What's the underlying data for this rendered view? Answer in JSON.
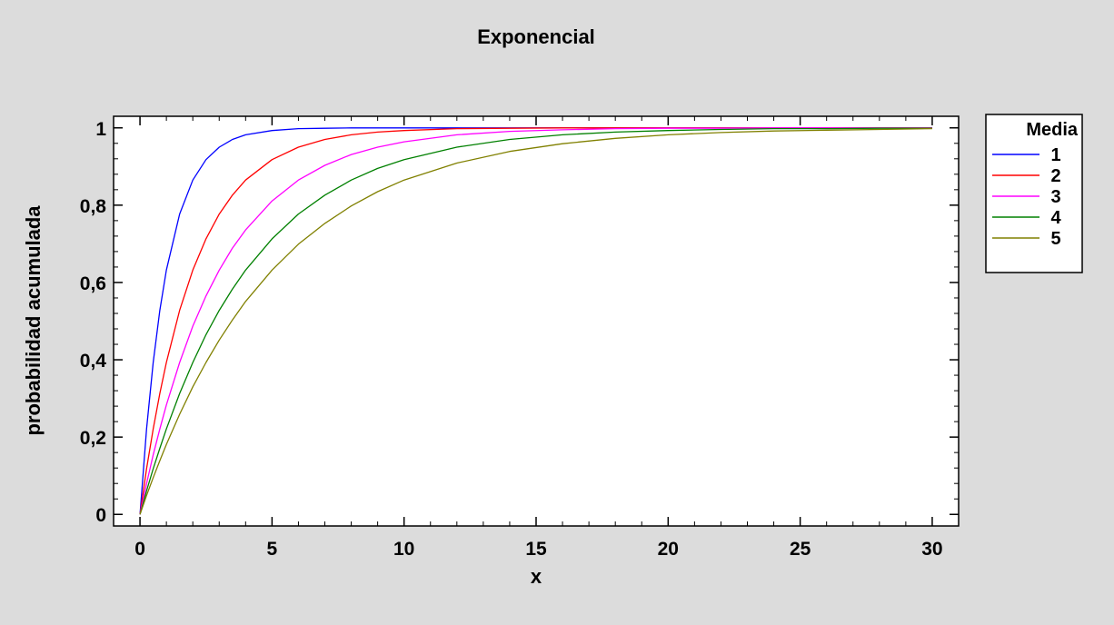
{
  "chart_data": {
    "type": "line",
    "title": "Exponencial",
    "xlabel": "x",
    "ylabel": "probabilidad acumulada",
    "xlim": [
      -1,
      31
    ],
    "ylim": [
      -0.03,
      1.03
    ],
    "x_ticks": [
      0,
      5,
      10,
      15,
      20,
      25,
      30
    ],
    "x_tick_labels": [
      "0",
      "5",
      "10",
      "15",
      "20",
      "25",
      "30"
    ],
    "y_ticks": [
      0,
      0.2,
      0.4,
      0.6,
      0.8,
      1
    ],
    "y_tick_labels": [
      "0",
      "0,2",
      "0,4",
      "0,6",
      "0,8",
      "1"
    ],
    "grid": false,
    "legend_title": "Media",
    "legend_position": "right",
    "x": [
      0,
      0.25,
      0.5,
      0.75,
      1,
      1.5,
      2,
      2.5,
      3,
      3.5,
      4,
      5,
      6,
      7,
      8,
      9,
      10,
      12,
      14,
      16,
      18,
      20,
      22,
      24,
      26,
      28,
      30
    ],
    "series": [
      {
        "name": "1",
        "color": "#0000ff",
        "values": [
          0,
          0.221,
          0.393,
          0.528,
          0.632,
          0.777,
          0.865,
          0.918,
          0.95,
          0.97,
          0.982,
          0.993,
          0.998,
          0.999,
          1,
          1,
          1,
          1,
          1,
          1,
          1,
          1,
          1,
          1,
          1,
          1,
          1
        ]
      },
      {
        "name": "2",
        "color": "#ff0000",
        "values": [
          0,
          0.118,
          0.221,
          0.313,
          0.393,
          0.528,
          0.632,
          0.713,
          0.777,
          0.826,
          0.865,
          0.918,
          0.95,
          0.97,
          0.982,
          0.989,
          0.993,
          0.998,
          0.999,
          1,
          1,
          1,
          1,
          1,
          1,
          1,
          1
        ]
      },
      {
        "name": "3",
        "color": "#ff00ff",
        "values": [
          0,
          0.08,
          0.154,
          0.221,
          0.283,
          0.393,
          0.487,
          0.565,
          0.632,
          0.689,
          0.736,
          0.811,
          0.865,
          0.903,
          0.931,
          0.95,
          0.964,
          0.982,
          0.991,
          0.995,
          0.998,
          0.999,
          0.999,
          1,
          1,
          1,
          1
        ]
      },
      {
        "name": "4",
        "color": "#008000",
        "values": [
          0,
          0.061,
          0.118,
          0.171,
          0.221,
          0.313,
          0.393,
          0.465,
          0.528,
          0.583,
          0.632,
          0.713,
          0.777,
          0.826,
          0.865,
          0.895,
          0.918,
          0.95,
          0.97,
          0.982,
          0.989,
          0.993,
          0.996,
          0.998,
          0.998,
          0.999,
          0.999
        ]
      },
      {
        "name": "5",
        "color": "#808000",
        "values": [
          0,
          0.049,
          0.095,
          0.139,
          0.181,
          0.259,
          0.33,
          0.393,
          0.451,
          0.503,
          0.551,
          0.632,
          0.699,
          0.753,
          0.798,
          0.835,
          0.865,
          0.909,
          0.939,
          0.959,
          0.973,
          0.982,
          0.988,
          0.992,
          0.994,
          0.996,
          0.998
        ]
      }
    ]
  }
}
